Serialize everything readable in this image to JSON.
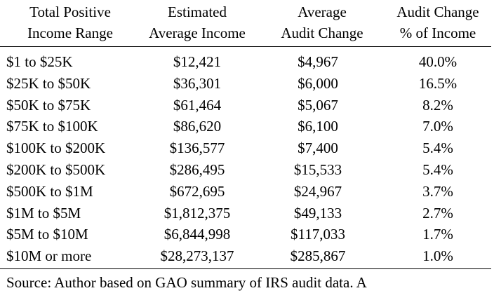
{
  "table": {
    "headers": [
      [
        "Total Positive",
        "Income Range"
      ],
      [
        "Estimated",
        "Average Income"
      ],
      [
        "Average",
        "Audit Change"
      ],
      [
        "Audit Change",
        "% of Income"
      ]
    ],
    "rows": [
      [
        "$1 to $25K",
        "$12,421",
        "$4,967",
        "40.0%"
      ],
      [
        "$25K to $50K",
        "$36,301",
        "$6,000",
        "16.5%"
      ],
      [
        "$50K to $75K",
        "$61,464",
        "$5,067",
        "8.2%"
      ],
      [
        "$75K to $100K",
        "$86,620",
        "$6,100",
        "7.0%"
      ],
      [
        "$100K to $200K",
        "$136,577",
        "$7,400",
        "5.4%"
      ],
      [
        "$200K to $500K",
        "$286,495",
        "$15,533",
        "5.4%"
      ],
      [
        "$500K to $1M",
        "$672,695",
        "$24,967",
        "3.7%"
      ],
      [
        "$1M to $5M",
        "$1,812,375",
        "$49,133",
        "2.7%"
      ],
      [
        "$5M to $10M",
        "$6,844,998",
        "$117,033",
        "1.7%"
      ],
      [
        "$10M or more",
        "$28,273,137",
        "$285,867",
        "1.0%"
      ]
    ]
  },
  "footnote": "Source: Author based on GAO summary of IRS audit data. A"
}
